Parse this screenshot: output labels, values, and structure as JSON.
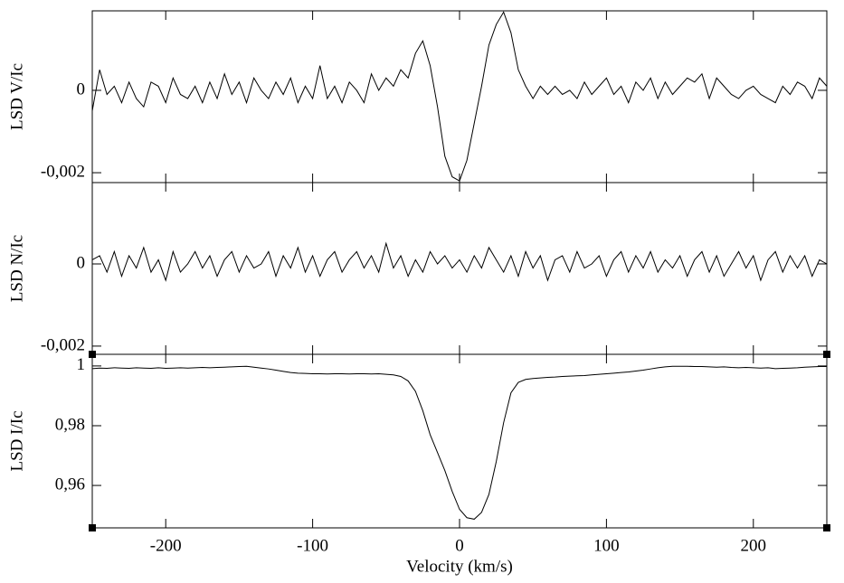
{
  "chart_data": [
    {
      "type": "line",
      "ylabel": "LSD V/Ic",
      "x": [
        -250,
        -245,
        -240,
        -235,
        -230,
        -225,
        -220,
        -215,
        -210,
        -205,
        -200,
        -195,
        -190,
        -185,
        -180,
        -175,
        -170,
        -165,
        -160,
        -155,
        -150,
        -145,
        -140,
        -135,
        -130,
        -125,
        -120,
        -115,
        -110,
        -105,
        -100,
        -95,
        -90,
        -85,
        -80,
        -75,
        -70,
        -65,
        -60,
        -55,
        -50,
        -45,
        -40,
        -35,
        -30,
        -25,
        -20,
        -15,
        -10,
        -5,
        0,
        5,
        10,
        15,
        20,
        25,
        30,
        35,
        40,
        45,
        50,
        55,
        60,
        65,
        70,
        75,
        80,
        85,
        90,
        95,
        100,
        105,
        110,
        115,
        120,
        125,
        130,
        135,
        140,
        145,
        150,
        155,
        160,
        165,
        170,
        175,
        180,
        185,
        190,
        195,
        200,
        205,
        210,
        215,
        220,
        225,
        230,
        235,
        240,
        245,
        250
      ],
      "values": [
        -0.0005,
        0.0005,
        -0.0001,
        0.0001,
        -0.0003,
        0.0002,
        -0.0002,
        -0.0004,
        0.0002,
        0.0001,
        -0.0003,
        0.0003,
        -0.0001,
        -0.0002,
        0.0001,
        -0.0003,
        0.0002,
        -0.0002,
        0.0004,
        -0.0001,
        0.0002,
        -0.0003,
        0.0003,
        0,
        -0.0002,
        0.0002,
        -0.0001,
        0.0003,
        -0.0003,
        0.0001,
        -0.0002,
        0.0006,
        -0.0002,
        0.0001,
        -0.0003,
        0.0002,
        0,
        -0.0003,
        0.0004,
        0,
        0.0003,
        0.0001,
        0.0005,
        0.0003,
        0.0009,
        0.0012,
        0.0006,
        -0.0004,
        -0.0016,
        -0.0021,
        -0.0022,
        -0.0017,
        -0.0008,
        0.0001,
        0.0011,
        0.0016,
        0.0019,
        0.0014,
        0.0005,
        0.0001,
        -0.0002,
        0.0001,
        -0.0001,
        0.0001,
        -0.0001,
        0,
        -0.0002,
        0.0002,
        -0.0001,
        0.0001,
        0.0003,
        -0.0001,
        0.0001,
        -0.0003,
        0.0002,
        0,
        0.0003,
        -0.0002,
        0.0002,
        -0.0001,
        0.0001,
        0.0003,
        0.0002,
        0.0004,
        -0.0002,
        0.0003,
        0.0001,
        -0.0001,
        -0.0002,
        0,
        0.0001,
        -0.0001,
        -0.0002,
        -0.0003,
        0.0001,
        -0.0001,
        0.0002,
        0.0001,
        -0.0002,
        0.0003,
        0.0001
      ],
      "color": "#000000",
      "xlim": [
        -250,
        250
      ],
      "ylim": [
        -0.00224,
        0.00193
      ],
      "yticks": [
        {
          "value": -0.002,
          "label": "-0,002"
        },
        0
      ]
    },
    {
      "type": "line",
      "ylabel": "LSD N/Ic",
      "x": [
        -250,
        -245,
        -240,
        -235,
        -230,
        -225,
        -220,
        -215,
        -210,
        -205,
        -200,
        -195,
        -190,
        -185,
        -180,
        -175,
        -170,
        -165,
        -160,
        -155,
        -150,
        -145,
        -140,
        -135,
        -130,
        -125,
        -120,
        -115,
        -110,
        -105,
        -100,
        -95,
        -90,
        -85,
        -80,
        -75,
        -70,
        -65,
        -60,
        -55,
        -50,
        -45,
        -40,
        -35,
        -30,
        -25,
        -20,
        -15,
        -10,
        -5,
        0,
        5,
        10,
        15,
        20,
        25,
        30,
        35,
        40,
        45,
        50,
        55,
        60,
        65,
        70,
        75,
        80,
        85,
        90,
        95,
        100,
        105,
        110,
        115,
        120,
        125,
        130,
        135,
        140,
        145,
        150,
        155,
        160,
        165,
        170,
        175,
        180,
        185,
        190,
        195,
        200,
        205,
        210,
        215,
        220,
        225,
        230,
        235,
        240,
        245,
        250
      ],
      "values": [
        0.0001,
        0.0002,
        -0.0002,
        0.0003,
        -0.0003,
        0.0002,
        -0.0001,
        0.0004,
        -0.0002,
        0.0001,
        -0.0004,
        0.0003,
        -0.0002,
        0,
        0.0003,
        -0.0001,
        0.0002,
        -0.0003,
        0.0001,
        0.0003,
        -0.0002,
        0.0002,
        -0.0001,
        0,
        0.0003,
        -0.0003,
        0.0002,
        -0.0001,
        0.0004,
        -0.0002,
        0.0002,
        -0.0003,
        0.0001,
        0.0003,
        -0.0002,
        0.0001,
        0.0003,
        -0.0001,
        0.0002,
        -0.0002,
        0.0005,
        -0.0001,
        0.0002,
        -0.0003,
        0.0001,
        -0.0002,
        0.0003,
        0,
        0.0002,
        -0.0001,
        0.0001,
        -0.0002,
        0.0002,
        -0.0001,
        0.0004,
        0.0001,
        -0.0002,
        0.0002,
        -0.0003,
        0.0003,
        -0.0001,
        0.0002,
        -0.0004,
        0.0001,
        0.0002,
        -0.0002,
        0.0003,
        -0.0001,
        0,
        0.0002,
        -0.0003,
        0.0001,
        0.0003,
        -0.0002,
        0.0002,
        -0.0001,
        0.0003,
        -0.0002,
        0.0001,
        -0.0001,
        0.0002,
        -0.0003,
        0.0001,
        0.0003,
        -0.0002,
        0.0002,
        -0.0003,
        0,
        0.0003,
        -0.0001,
        0.0002,
        -0.0004,
        0.0001,
        0.0003,
        -0.0002,
        0.0002,
        -0.0001,
        0.0002,
        -0.0003,
        0.0001,
        0
      ],
      "color": "#000000",
      "xlim": [
        -250,
        250
      ],
      "ylim": [
        -0.0022,
        0.00198
      ],
      "yticks": [
        {
          "value": -0.002,
          "label": "-0,002"
        },
        0
      ]
    },
    {
      "type": "line",
      "ylabel": "LSD I/Ic",
      "xlabel": "Velocity (km/s)",
      "x": [
        -250,
        -245,
        -240,
        -235,
        -230,
        -225,
        -220,
        -215,
        -210,
        -205,
        -200,
        -195,
        -190,
        -185,
        -180,
        -175,
        -170,
        -165,
        -160,
        -155,
        -150,
        -145,
        -140,
        -135,
        -130,
        -125,
        -120,
        -115,
        -110,
        -105,
        -100,
        -95,
        -90,
        -85,
        -80,
        -75,
        -70,
        -65,
        -60,
        -55,
        -50,
        -45,
        -40,
        -35,
        -30,
        -25,
        -20,
        -15,
        -10,
        -5,
        0,
        5,
        10,
        15,
        20,
        25,
        30,
        35,
        40,
        45,
        50,
        55,
        60,
        65,
        70,
        75,
        80,
        85,
        90,
        95,
        100,
        105,
        110,
        115,
        120,
        125,
        130,
        135,
        140,
        145,
        150,
        155,
        160,
        165,
        170,
        175,
        180,
        185,
        190,
        195,
        200,
        205,
        210,
        215,
        220,
        225,
        230,
        235,
        240,
        245,
        250
      ],
      "values": [
        0.9991,
        0.9993,
        0.9992,
        0.9994,
        0.9993,
        0.9992,
        0.9994,
        0.9993,
        0.9992,
        0.9994,
        0.9992,
        0.9993,
        0.9994,
        0.9993,
        0.9994,
        0.9995,
        0.9994,
        0.9995,
        0.9996,
        0.9997,
        0.9998,
        0.9999,
        0.9996,
        0.9993,
        0.999,
        0.9986,
        0.9982,
        0.9978,
        0.9976,
        0.9975,
        0.9974,
        0.9974,
        0.9973,
        0.9974,
        0.9974,
        0.9973,
        0.9974,
        0.9974,
        0.9973,
        0.9974,
        0.9972,
        0.997,
        0.9965,
        0.995,
        0.9915,
        0.985,
        0.977,
        0.971,
        0.965,
        0.958,
        0.952,
        0.9492,
        0.9487,
        0.951,
        0.957,
        0.968,
        0.981,
        0.991,
        0.9945,
        0.9955,
        0.9958,
        0.996,
        0.9962,
        0.9963,
        0.9965,
        0.9966,
        0.9967,
        0.9968,
        0.997,
        0.9972,
        0.9974,
        0.9976,
        0.9978,
        0.998,
        0.9983,
        0.9986,
        0.999,
        0.9994,
        0.9997,
        0.9999,
        0.9999,
        0.9999,
        0.9998,
        0.9998,
        0.9997,
        0.9996,
        0.9997,
        0.9995,
        0.9994,
        0.9995,
        0.9994,
        0.9993,
        0.9994,
        0.9991,
        0.9992,
        0.9993,
        0.9994,
        0.9996,
        0.9997,
        0.9998,
        0.9998
      ],
      "color": "#000000",
      "xlim": [
        -250,
        250
      ],
      "ylim": [
        0.9458,
        1.0039
      ],
      "xticks": [
        -200,
        -100,
        0,
        100,
        200
      ],
      "yticks": [
        {
          "value": 0.96,
          "label": "0,96"
        },
        {
          "value": 0.98,
          "label": "0,98"
        },
        1
      ]
    }
  ]
}
